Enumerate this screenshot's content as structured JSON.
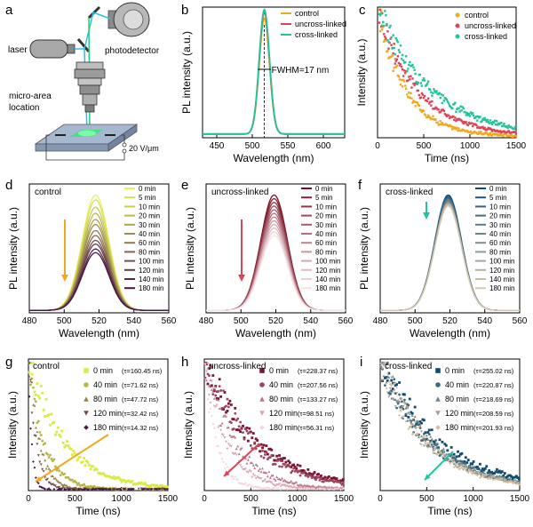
{
  "figure": {
    "panel_labels": [
      "a",
      "b",
      "c",
      "d",
      "e",
      "f",
      "g",
      "h",
      "i"
    ],
    "schematic": {
      "laser": "laser",
      "photodetector": "photodetector",
      "micro_area": "micro-area",
      "location": "location",
      "field": "20 V/μm"
    },
    "annotations": {
      "fwhm": "FWHM=17 nm"
    },
    "colors": {
      "control": "#f0a820",
      "uncross": "#dc4558",
      "cross": "#22c49a"
    }
  },
  "chart_data": [
    {
      "id": "b",
      "type": "line",
      "xlabel": "Wavelength (nm)",
      "ylabel": "PL intensity (a.u.)",
      "xlim": [
        430,
        630
      ],
      "xticks": [
        450,
        500,
        550,
        600
      ],
      "ylim": [
        0,
        1.05
      ],
      "legend": "top-right",
      "series": [
        {
          "name": "control",
          "center": 517,
          "fwhm": 17,
          "peak": 0.93
        },
        {
          "name": "uncross-linked",
          "center": 517,
          "fwhm": 17,
          "peak": 0.98
        },
        {
          "name": "cross-linked",
          "center": 517,
          "fwhm": 17,
          "peak": 1.0
        }
      ]
    },
    {
      "id": "c",
      "type": "scatter",
      "xlabel": "Time (ns)",
      "ylabel": "Intensity (a.u.)",
      "xlim": [
        0,
        1500
      ],
      "xticks": [
        0,
        500,
        1000,
        1500
      ],
      "ylim": [
        0,
        1.0
      ],
      "legend": "top-right",
      "series": [
        {
          "name": "control",
          "tau": 300
        },
        {
          "name": "uncross-linked",
          "tau": 420
        },
        {
          "name": "cross-linked",
          "tau": 560
        }
      ]
    },
    {
      "id": "d",
      "type": "line",
      "title": "control",
      "xlabel": "Wavelength (nm)",
      "ylabel": "PL intensity (a.u.)",
      "xlim": [
        480,
        560
      ],
      "xticks": [
        480,
        500,
        520,
        540,
        560
      ],
      "ylim": [
        0,
        1.05
      ],
      "legend": "top-right",
      "x": [
        "0 min",
        "5 min",
        "10 min",
        "20 min",
        "30 min",
        "40 min",
        "60 min",
        "80 min",
        "100 min",
        "120 min",
        "140 min",
        "180 min"
      ],
      "peak_center": 518,
      "fwhm": 18,
      "peaks": [
        0.94,
        0.9,
        0.84,
        0.79,
        0.74,
        0.7,
        0.65,
        0.61,
        0.57,
        0.54,
        0.5,
        0.47
      ]
    },
    {
      "id": "e",
      "type": "line",
      "title": "uncross-linked",
      "xlabel": "Wavelength (nm)",
      "ylabel": "PL intensity (a.u.)",
      "xlim": [
        480,
        560
      ],
      "xticks": [
        480,
        500,
        520,
        540,
        560
      ],
      "ylim": [
        0,
        1.05
      ],
      "legend": "top-right",
      "x": [
        "0 min",
        "5 min",
        "10 min",
        "20 min",
        "30 min",
        "40 min",
        "60 min",
        "80 min",
        "100 min",
        "120 min",
        "140 min",
        "180 min"
      ],
      "peak_center": 519,
      "fwhm": 18,
      "peaks": [
        0.94,
        0.91,
        0.88,
        0.85,
        0.82,
        0.79,
        0.76,
        0.73,
        0.7,
        0.67,
        0.64,
        0.61
      ]
    },
    {
      "id": "f",
      "type": "line",
      "title": "cross-linked",
      "xlabel": "Wavelength (nm)",
      "ylabel": "PL intensity (a.u.)",
      "xlim": [
        480,
        560
      ],
      "xticks": [
        480,
        500,
        520,
        540,
        560
      ],
      "ylim": [
        0,
        1.05
      ],
      "legend": "top-right",
      "x": [
        "0 min",
        "5 min",
        "10 min",
        "20 min",
        "30 min",
        "40 min",
        "60 min",
        "80 min",
        "100 min",
        "120 min",
        "140 min",
        "180 min"
      ],
      "peak_center": 519,
      "fwhm": 18,
      "peaks": [
        0.94,
        0.93,
        0.92,
        0.91,
        0.9,
        0.89,
        0.88,
        0.875,
        0.87,
        0.865,
        0.86,
        0.85
      ]
    },
    {
      "id": "g",
      "type": "scatter",
      "title": "control",
      "xlabel": "Time (ns)",
      "ylabel": "Intensity (a.u.)",
      "xlim": [
        0,
        1500
      ],
      "xticks": [
        0,
        500,
        1000,
        1500
      ],
      "ylim": [
        0,
        1.0
      ],
      "legend": "top-right",
      "series": [
        {
          "name": "0 min",
          "tau_label": "(τ=160.45 ns)",
          "tau": 160.45
        },
        {
          "name": "40 min",
          "tau_label": "(τ=71.62 ns)",
          "tau": 71.62
        },
        {
          "name": "80 min",
          "tau_label": "(τ=47.72 ns)",
          "tau": 47.72
        },
        {
          "name": "120 min",
          "tau_label": "(τ=32.42 ns)",
          "tau": 32.42
        },
        {
          "name": "180 min",
          "tau_label": "(τ=14.32 ns)",
          "tau": 14.32
        }
      ]
    },
    {
      "id": "h",
      "type": "scatter",
      "title": "uncross-linked",
      "xlabel": "Time (ns)",
      "ylabel": "Intensity (a.u.)",
      "xlim": [
        0,
        1500
      ],
      "xticks": [
        0,
        500,
        1000,
        1500
      ],
      "ylim": [
        0,
        1.0
      ],
      "legend": "top-right",
      "series": [
        {
          "name": "0 min",
          "tau_label": "(τ=228.37 ns)",
          "tau": 228.37
        },
        {
          "name": "40 min",
          "tau_label": "(τ=207.56 ns)",
          "tau": 207.56
        },
        {
          "name": "80 min",
          "tau_label": "(τ=133.27 ns)",
          "tau": 133.27
        },
        {
          "name": "120 min",
          "tau_label": "(τ=98.51 ns)",
          "tau": 98.51
        },
        {
          "name": "180 min",
          "tau_label": "(τ=56.31 ns)",
          "tau": 56.31
        }
      ]
    },
    {
      "id": "i",
      "type": "scatter",
      "title": "cross-linked",
      "xlabel": "Time (ns)",
      "ylabel": "Intensity (a.u.)",
      "xlim": [
        0,
        1500
      ],
      "xticks": [
        0,
        500,
        1000,
        1500
      ],
      "ylim": [
        0,
        1.0
      ],
      "legend": "top-right",
      "series": [
        {
          "name": "0 min",
          "tau_label": "(τ=255.02 ns)",
          "tau": 255.02
        },
        {
          "name": "40 min",
          "tau_label": "(τ=220.87 ns)",
          "tau": 220.87
        },
        {
          "name": "80 min",
          "tau_label": "(τ=218.69 ns)",
          "tau": 218.69
        },
        {
          "name": "120 min",
          "tau_label": "(τ=208.59 ns)",
          "tau": 208.59
        },
        {
          "name": "180 min",
          "tau_label": "(τ=201.93 ns)",
          "tau": 201.93
        }
      ]
    }
  ]
}
